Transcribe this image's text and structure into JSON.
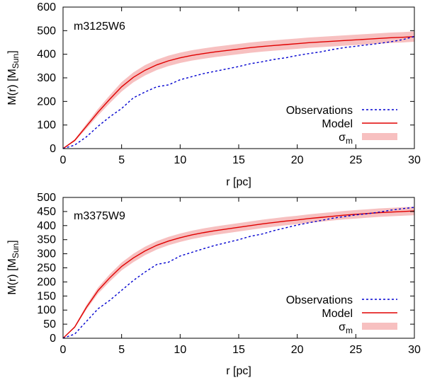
{
  "chart_data": [
    {
      "type": "line",
      "title": "m3125W6",
      "xlabel": "r [pc]",
      "ylabel": "M(r) [M",
      "ylabel_sub": "Sun",
      "ylabel_close": "]",
      "xlim": [
        0,
        30
      ],
      "ylim": [
        0,
        600
      ],
      "xticks": [
        "0",
        "5",
        "10",
        "15",
        "20",
        "25",
        "30"
      ],
      "yticks": [
        "0",
        "100",
        "200",
        "300",
        "400",
        "500",
        "600"
      ],
      "legend": {
        "observations": "Observations",
        "model": "Model",
        "sigma": "σ",
        "sigma_sub": "m"
      },
      "colors": {
        "observations": "#0000d0",
        "model": "#e00000",
        "band": "#f7c0c0"
      },
      "series": [
        {
          "name": "Observations",
          "x": [
            0,
            1,
            2,
            3,
            4,
            5,
            6,
            7,
            8,
            9,
            10,
            11,
            12,
            13,
            14,
            15,
            16,
            17,
            18,
            19,
            20,
            21,
            22,
            23,
            24,
            25,
            26,
            27,
            28,
            29,
            30
          ],
          "y": [
            0,
            15,
            50,
            95,
            135,
            170,
            215,
            240,
            262,
            270,
            292,
            305,
            318,
            328,
            338,
            348,
            360,
            368,
            378,
            385,
            395,
            403,
            410,
            420,
            428,
            434,
            440,
            446,
            453,
            462,
            475
          ]
        },
        {
          "name": "Model",
          "x": [
            0,
            1,
            2,
            3,
            4,
            5,
            6,
            7,
            8,
            9,
            10,
            11,
            12,
            13,
            14,
            15,
            16,
            17,
            18,
            19,
            20,
            21,
            22,
            23,
            24,
            25,
            26,
            27,
            28,
            29,
            30
          ],
          "y": [
            0,
            35,
            95,
            155,
            210,
            262,
            302,
            332,
            355,
            372,
            385,
            395,
            403,
            410,
            416,
            422,
            428,
            433,
            437,
            441,
            445,
            449,
            452,
            455,
            458,
            461,
            464,
            467,
            470,
            472,
            475
          ]
        },
        {
          "name": "sigma_m",
          "band_halfwidth": [
            0,
            5,
            10,
            14,
            17,
            20,
            21,
            22,
            22,
            22,
            22,
            22,
            22,
            22,
            22,
            22,
            22,
            22,
            22,
            22,
            22,
            22,
            22,
            22,
            22,
            22,
            22,
            22,
            22,
            22,
            22
          ]
        }
      ]
    },
    {
      "type": "line",
      "title": "m3375W9",
      "xlabel": "r [pc]",
      "ylabel": "M(r) [M",
      "ylabel_sub": "Sun",
      "ylabel_close": "]",
      "xlim": [
        0,
        30
      ],
      "ylim": [
        0,
        500
      ],
      "xticks": [
        "0",
        "5",
        "10",
        "15",
        "20",
        "25",
        "30"
      ],
      "yticks": [
        "0",
        "50",
        "100",
        "150",
        "200",
        "250",
        "300",
        "350",
        "400",
        "450",
        "500"
      ],
      "legend": {
        "observations": "Observations",
        "model": "Model",
        "sigma": "σ",
        "sigma_sub": "m"
      },
      "colors": {
        "observations": "#0000d0",
        "model": "#e00000",
        "band": "#f7c0c0"
      },
      "series": [
        {
          "name": "Observations",
          "x": [
            0,
            1,
            2,
            3,
            4,
            5,
            6,
            7,
            8,
            9,
            10,
            11,
            12,
            13,
            14,
            15,
            16,
            17,
            18,
            19,
            20,
            21,
            22,
            23,
            24,
            25,
            26,
            27,
            28,
            29,
            30
          ],
          "y": [
            0,
            15,
            60,
            105,
            135,
            170,
            205,
            235,
            262,
            270,
            292,
            305,
            318,
            330,
            340,
            350,
            362,
            370,
            382,
            392,
            402,
            410,
            418,
            426,
            432,
            438,
            442,
            448,
            455,
            460,
            465
          ]
        },
        {
          "name": "Model",
          "x": [
            0,
            1,
            2,
            3,
            4,
            5,
            6,
            7,
            8,
            9,
            10,
            11,
            12,
            13,
            14,
            15,
            16,
            17,
            18,
            19,
            20,
            21,
            22,
            23,
            24,
            25,
            26,
            27,
            28,
            29,
            30
          ],
          "y": [
            0,
            40,
            110,
            170,
            215,
            255,
            285,
            310,
            330,
            345,
            357,
            367,
            375,
            382,
            388,
            394,
            400,
            406,
            411,
            416,
            420,
            425,
            429,
            433,
            437,
            440,
            443,
            446,
            448,
            450,
            452
          ]
        },
        {
          "name": "sigma_m",
          "band_halfwidth": [
            0,
            4,
            8,
            11,
            13,
            14,
            15,
            15,
            15,
            15,
            15,
            15,
            15,
            15,
            15,
            15,
            15,
            15,
            15,
            15,
            15,
            15,
            15,
            15,
            15,
            15,
            15,
            15,
            15,
            15,
            15
          ]
        }
      ]
    }
  ]
}
